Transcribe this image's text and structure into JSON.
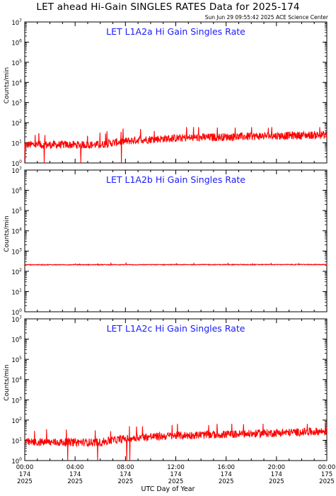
{
  "title": "LET ahead Hi-Gain SINGLES RATES Data for 2025-174",
  "timestamp": "Sun Jun 29 09:55:42 2025 ACE Science Center",
  "xlabel": "UTC Day of Year",
  "colors": {
    "data": "#ff0000",
    "panel_title": "#1a1aff",
    "axes": "#000000"
  },
  "chart_data": [
    {
      "type": "line",
      "title": "LET L1A2a Hi Gain Singles Rate",
      "ylabel": "Counts/min",
      "yscale": "log",
      "ylim": [
        1,
        10000000
      ],
      "x_unit": "hours of day 174",
      "xlim": [
        0,
        24
      ],
      "baseline_trend": {
        "x": [
          0,
          6,
          9,
          12,
          18,
          24
        ],
        "y": [
          8,
          8,
          14,
          17,
          21,
          25
        ]
      },
      "spike_max": 60,
      "dip_min": 1,
      "series": [
        {
          "color": "#ff0000"
        }
      ]
    },
    {
      "type": "line",
      "title": "LET L1A2b Hi Gain Singles Rate",
      "ylabel": "Counts/min",
      "yscale": "log",
      "ylim": [
        1,
        10000000
      ],
      "x_unit": "hours of day 174",
      "xlim": [
        0,
        24
      ],
      "baseline_trend": {
        "x": [
          0,
          24
        ],
        "y": [
          210,
          215
        ]
      },
      "spike_max": 250,
      "series": [
        {
          "color": "#ff0000"
        }
      ]
    },
    {
      "type": "line",
      "title": "LET L1A2c Hi Gain Singles Rate",
      "ylabel": "Counts/min",
      "yscale": "log",
      "ylim": [
        1,
        10000000
      ],
      "x_unit": "hours of day 174",
      "xlim": [
        0,
        24
      ],
      "baseline_trend": {
        "x": [
          0,
          6,
          9,
          12,
          18,
          24
        ],
        "y": [
          8,
          8,
          14,
          17,
          21,
          28
        ]
      },
      "spike_max": 65,
      "dip_min": 1,
      "series": [
        {
          "color": "#ff0000"
        }
      ]
    }
  ],
  "ytick_labels": [
    {
      "base": "10",
      "exp": "0"
    },
    {
      "base": "10",
      "exp": "1"
    },
    {
      "base": "10",
      "exp": "2"
    },
    {
      "base": "10",
      "exp": "3"
    },
    {
      "base": "10",
      "exp": "4"
    },
    {
      "base": "10",
      "exp": "5"
    },
    {
      "base": "10",
      "exp": "6"
    },
    {
      "base": "10",
      "exp": "7"
    }
  ],
  "xtick_labels": [
    {
      "time": "00:00",
      "doy": "174",
      "year": "2025"
    },
    {
      "time": "04:00",
      "doy": "174",
      "year": "2025"
    },
    {
      "time": "08:00",
      "doy": "174",
      "year": "2025"
    },
    {
      "time": "12:00",
      "doy": "174",
      "year": "2025"
    },
    {
      "time": "16:00",
      "doy": "174",
      "year": "2025"
    },
    {
      "time": "20:00",
      "doy": "174",
      "year": "2025"
    },
    {
      "time": "00:00",
      "doy": "175",
      "year": "2025"
    }
  ]
}
